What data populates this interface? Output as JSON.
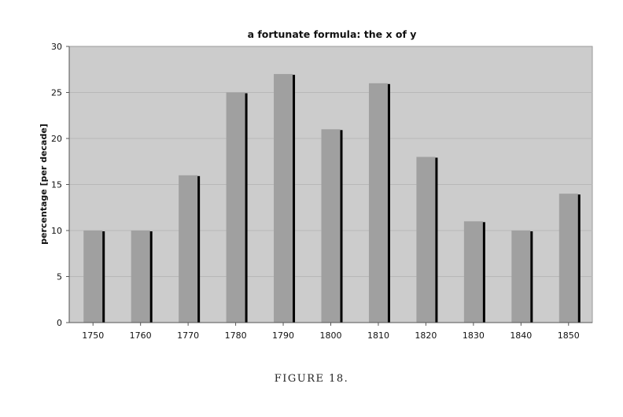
{
  "chart_data": {
    "type": "bar",
    "title": "a fortunate formula: the x of y",
    "xlabel": "",
    "ylabel": "percentage [per decade]",
    "categories": [
      "1750",
      "1760",
      "1770",
      "1780",
      "1790",
      "1800",
      "1810",
      "1820",
      "1830",
      "1840",
      "1850"
    ],
    "values": [
      10,
      10,
      16,
      25,
      27,
      21,
      26,
      18,
      11,
      10,
      14
    ],
    "ylim": [
      0,
      30
    ],
    "yticks": [
      0,
      5,
      10,
      15,
      20,
      25,
      30
    ],
    "grid": true,
    "legend": "none",
    "colors": {
      "plot_background": "#cccccc",
      "bar": "#a0a0a0",
      "bar_shadow": "#000000",
      "gridline": "#b8b8b8"
    }
  },
  "caption": "FIGURE 18."
}
